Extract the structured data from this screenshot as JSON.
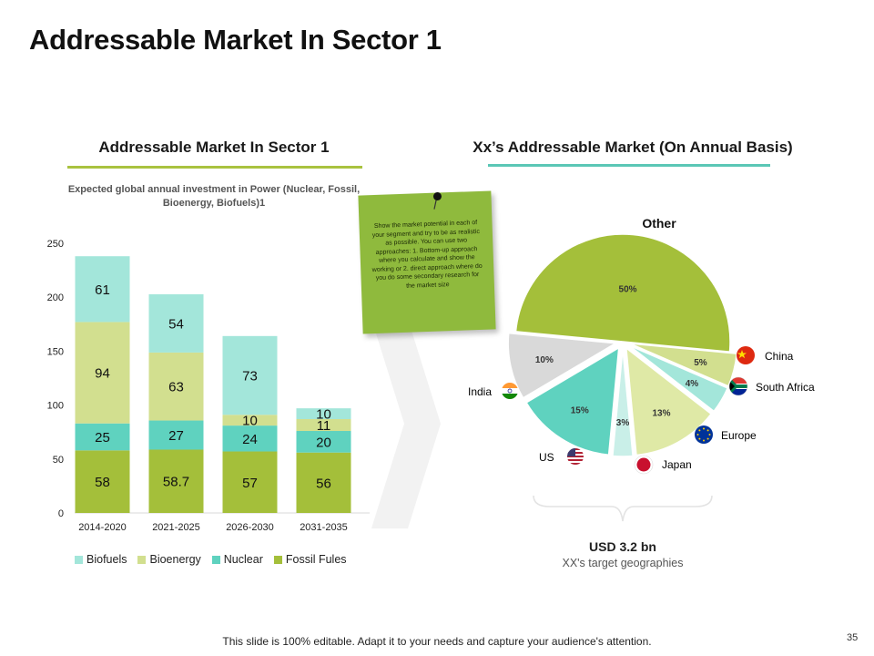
{
  "slide": {
    "title": "Addressable Market In Sector 1",
    "page_number": "35",
    "footer_note": "This slide is 100% editable. Adapt it to your needs and capture your audience's attention."
  },
  "left_panel": {
    "title": "Addressable Market In Sector 1",
    "subtitle": "Expected global annual investment in Power (Nuclear, Fossil, Bioenergy, Biofuels)1",
    "accent_color": "#a9c23f"
  },
  "right_panel": {
    "title": "Xx’s Addressable Market (On Annual Basis)",
    "accent_color": "#5bc7b6",
    "sticky_note_text": "Show the market potential in each of your segment and try to be as realistic as possible. You can use two approaches: 1. Bottom-up approach where you calculate and show the working or 2. direct approach where do you do some secondary research for the market size",
    "total_value": "USD 3.2 bn",
    "total_caption": "XX's target geographies"
  },
  "chart_data": [
    {
      "type": "bar",
      "stacked": true,
      "categories": [
        "2014-2020",
        "2021-2025",
        "2026-2030",
        "2031-2035"
      ],
      "series": [
        {
          "name": "Fossil Fules",
          "values": [
            58,
            58.7,
            57,
            56
          ],
          "labels": [
            "58",
            "58.7",
            "57",
            "56"
          ],
          "color": "#a4bf3a"
        },
        {
          "name": "Nuclear",
          "values": [
            25,
            27,
            24,
            20
          ],
          "labels": [
            "25",
            "27",
            "24",
            "20"
          ],
          "color": "#5fd2bf"
        },
        {
          "name": "Bioenergy",
          "values": [
            94,
            63,
            10,
            11
          ],
          "labels": [
            "94",
            "63",
            "10",
            "11"
          ],
          "color": "#d2df8f"
        },
        {
          "name": "Biofuels",
          "values": [
            61,
            54,
            73,
            10
          ],
          "labels": [
            "61",
            "54",
            "73",
            "10"
          ],
          "color": "#a3e6da"
        }
      ],
      "legend_order": [
        "Biofuels",
        "Bioenergy",
        "Nuclear",
        "Fossil Fules"
      ],
      "ylim": [
        0,
        250
      ],
      "yticks": [
        0,
        50,
        100,
        150,
        200,
        250
      ],
      "xlabel": "",
      "ylabel": "",
      "legend_position": "bottom"
    },
    {
      "type": "pie",
      "slices": [
        {
          "name": "Other",
          "value": 50,
          "label": "50%",
          "color": "#a4bf3a"
        },
        {
          "name": "China",
          "value": 5,
          "label": "5%",
          "color": "#d2df8f"
        },
        {
          "name": "South Africa",
          "value": 4,
          "label": "4%",
          "color": "#a3e6da"
        },
        {
          "name": "Europe",
          "value": 13,
          "label": "13%",
          "color": "#dfe9a6"
        },
        {
          "name": "Japan",
          "value": 3,
          "label": "3%",
          "color": "#c9efe8"
        },
        {
          "name": "US",
          "value": 15,
          "label": "15%",
          "color": "#5fd2bf"
        },
        {
          "name": "India",
          "value": 10,
          "label": "10%",
          "color": "#d9d9d9"
        }
      ],
      "outside_labels": {
        "other": "Other",
        "china": "China",
        "south_africa": "South Africa",
        "europe": "Europe",
        "japan": "Japan",
        "us": "US",
        "india": "India"
      }
    }
  ]
}
